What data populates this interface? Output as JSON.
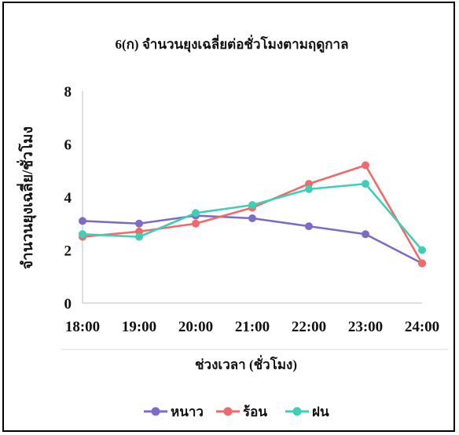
{
  "chart_data": {
    "type": "line",
    "title": "6(ก) จำนวนยุงเฉลี่ยต่อชั่วโมงตามฤดูกาล",
    "xlabel": "ช่วงเวลา (ชั่วโมง)",
    "ylabel": "จำนวนยุงเฉลี่ย/ชั่วโมง",
    "categories": [
      "18:00",
      "19:00",
      "20:00",
      "21:00",
      "22:00",
      "23:00",
      "24:00"
    ],
    "ylim": [
      0,
      8
    ],
    "yticks": [
      "0",
      "2",
      "4",
      "6",
      "8"
    ],
    "grid": false,
    "legend_position": "bottom",
    "series": [
      {
        "name": "หนาว",
        "color": "#7E6BC4",
        "values": [
          3.1,
          3.0,
          3.3,
          3.2,
          2.9,
          2.6,
          1.5
        ]
      },
      {
        "name": "ร้อน",
        "color": "#F06A6A",
        "values": [
          2.5,
          2.7,
          3.0,
          3.6,
          4.5,
          5.2,
          1.5
        ]
      },
      {
        "name": "ฝน",
        "color": "#3FCFB7",
        "values": [
          2.6,
          2.5,
          3.4,
          3.7,
          4.3,
          4.5,
          2.0
        ]
      }
    ]
  }
}
